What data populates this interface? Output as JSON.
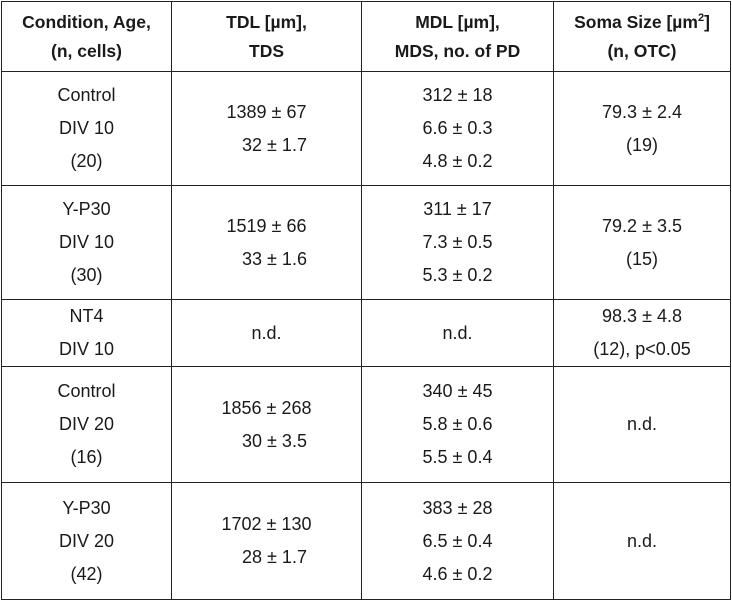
{
  "headers": {
    "col1": [
      "Condition, Age,",
      "(n, cells)"
    ],
    "col2": [
      "TDL [µm],",
      "TDS"
    ],
    "col3": [
      "MDL [µm],",
      "MDS, no. of PD"
    ],
    "col4_main": "Soma Size [µm",
    "col4_sup": "2",
    "col4_end": "]",
    "col4_line2": "(n, OTC)"
  },
  "rows": [
    {
      "condition": [
        "Control",
        "DIV 10",
        "(20)"
      ],
      "tdl": [
        "1389 ± 67",
        "32 ± 1.7"
      ],
      "mdl": [
        "312 ± 18",
        "6.6 ± 0.3",
        "4.8 ± 0.2"
      ],
      "soma": [
        "79.3 ± 2.4",
        "(19)"
      ]
    },
    {
      "condition": [
        "Y-P30",
        "DIV 10",
        "(30)"
      ],
      "tdl": [
        "1519 ± 66",
        "33 ± 1.6"
      ],
      "mdl": [
        "311 ± 17",
        "7.3 ± 0.5",
        "5.3 ± 0.2"
      ],
      "soma": [
        "79.2 ± 3.5",
        "(15)"
      ]
    },
    {
      "condition": [
        "NT4",
        "DIV 10"
      ],
      "tdl": [
        "n.d."
      ],
      "mdl": [
        "n.d."
      ],
      "soma": [
        "98.3 ± 4.8",
        "(12), p<0.05"
      ]
    },
    {
      "condition": [
        "Control",
        "DIV 20",
        "(16)"
      ],
      "tdl": [
        "1856 ± 268",
        "30 ± 3.5"
      ],
      "mdl": [
        "340 ± 45",
        "5.8 ± 0.6",
        "5.5 ± 0.4"
      ],
      "soma": [
        "n.d."
      ]
    },
    {
      "condition": [
        "Y-P30",
        "DIV 20",
        "(42)"
      ],
      "tdl": [
        "1702 ± 130",
        "28 ± 1.7"
      ],
      "mdl": [
        "383 ± 28",
        "6.5 ± 0.4",
        "4.6 ± 0.2"
      ],
      "soma": [
        "n.d."
      ]
    }
  ]
}
